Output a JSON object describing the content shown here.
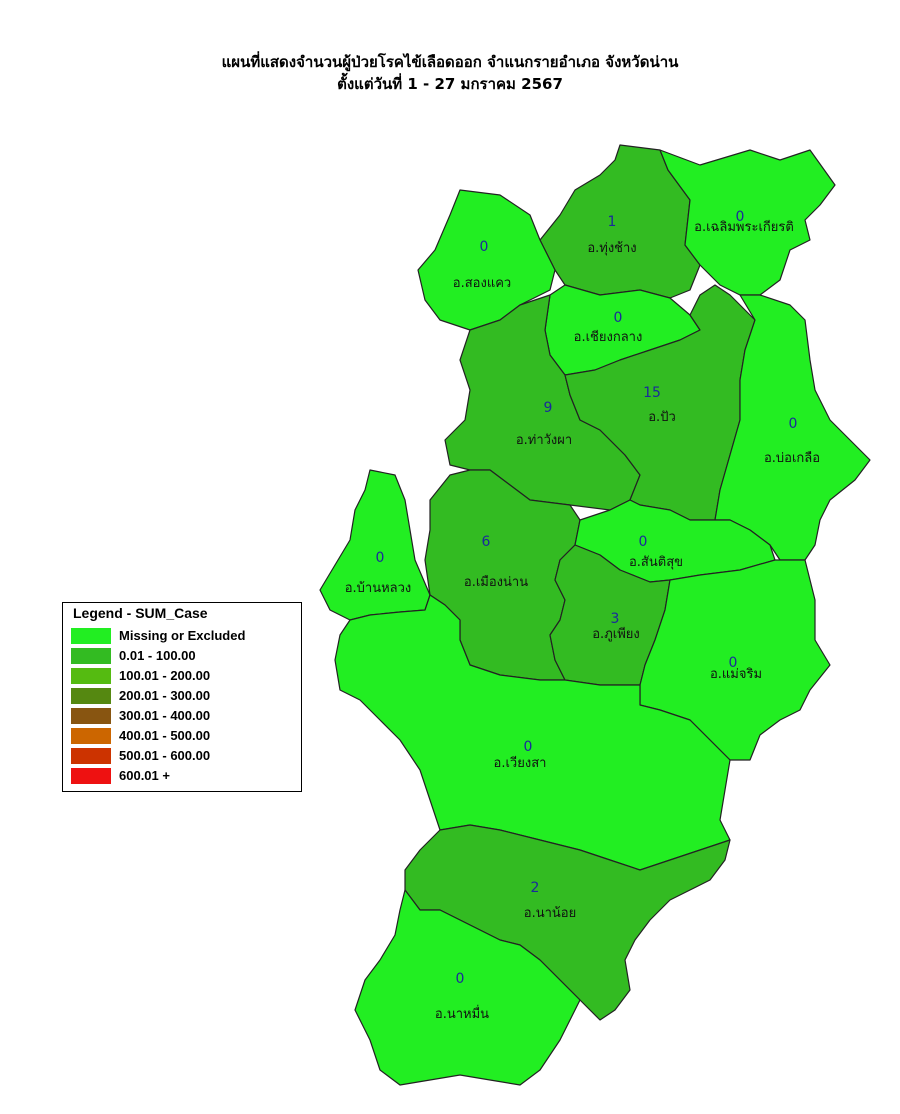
{
  "title": "แผนที่แสดงจำนวนผู้ป่วยโรคไข้เลือดออก จำแนกรายอำเภอ จังหวัดน่าน",
  "subtitle": "ตั้งแต่วันที่ 1  - 27 มกราคม 2567",
  "colors": {
    "missing": "#22ee22",
    "bin1": "#33bb22",
    "border": "#222222"
  },
  "legend": {
    "title": "Legend - SUM_Case",
    "items": [
      {
        "label": "Missing or Excluded",
        "color": "#22ee22"
      },
      {
        "label": "0.01 - 100.00",
        "color": "#33bb22"
      },
      {
        "label": "100.01 - 200.00",
        "color": "#55bb11"
      },
      {
        "label": "200.01 - 300.00",
        "color": "#558811"
      },
      {
        "label": "300.01 - 400.00",
        "color": "#885511"
      },
      {
        "label": "400.01 - 500.00",
        "color": "#cc6600"
      },
      {
        "label": "500.01 - 600.00",
        "color": "#cc3300"
      },
      {
        "label": "600.01 +",
        "color": "#ee1111"
      }
    ]
  },
  "districts": [
    {
      "name": "อ.ทุ่งช้าง",
      "cases": "1",
      "fill": "bin1"
    },
    {
      "name": "อ.เฉลิมพระเกียรติ",
      "cases": "0",
      "fill": "missing"
    },
    {
      "name": "อ.สองแคว",
      "cases": "0",
      "fill": "missing"
    },
    {
      "name": "อ.เชียงกลาง",
      "cases": "0",
      "fill": "missing"
    },
    {
      "name": "อ.ท่าวังผา",
      "cases": "9",
      "fill": "bin1"
    },
    {
      "name": "อ.ปัว",
      "cases": "15",
      "fill": "bin1"
    },
    {
      "name": "อ.บ่อเกลือ",
      "cases": "0",
      "fill": "missing"
    },
    {
      "name": "อ.บ้านหลวง",
      "cases": "0",
      "fill": "missing"
    },
    {
      "name": "อ.เมืองน่าน",
      "cases": "6",
      "fill": "bin1"
    },
    {
      "name": "อ.สันติสุข",
      "cases": "0",
      "fill": "missing"
    },
    {
      "name": "อ.ภูเพียง",
      "cases": "3",
      "fill": "bin1"
    },
    {
      "name": "อ.แม่จริม",
      "cases": "0",
      "fill": "missing"
    },
    {
      "name": "อ.เวียงสา",
      "cases": "0",
      "fill": "missing"
    },
    {
      "name": "อ.นาน้อย",
      "cases": "2",
      "fill": "bin1"
    },
    {
      "name": "อ.นาหมื่น",
      "cases": "0",
      "fill": "missing"
    }
  ]
}
